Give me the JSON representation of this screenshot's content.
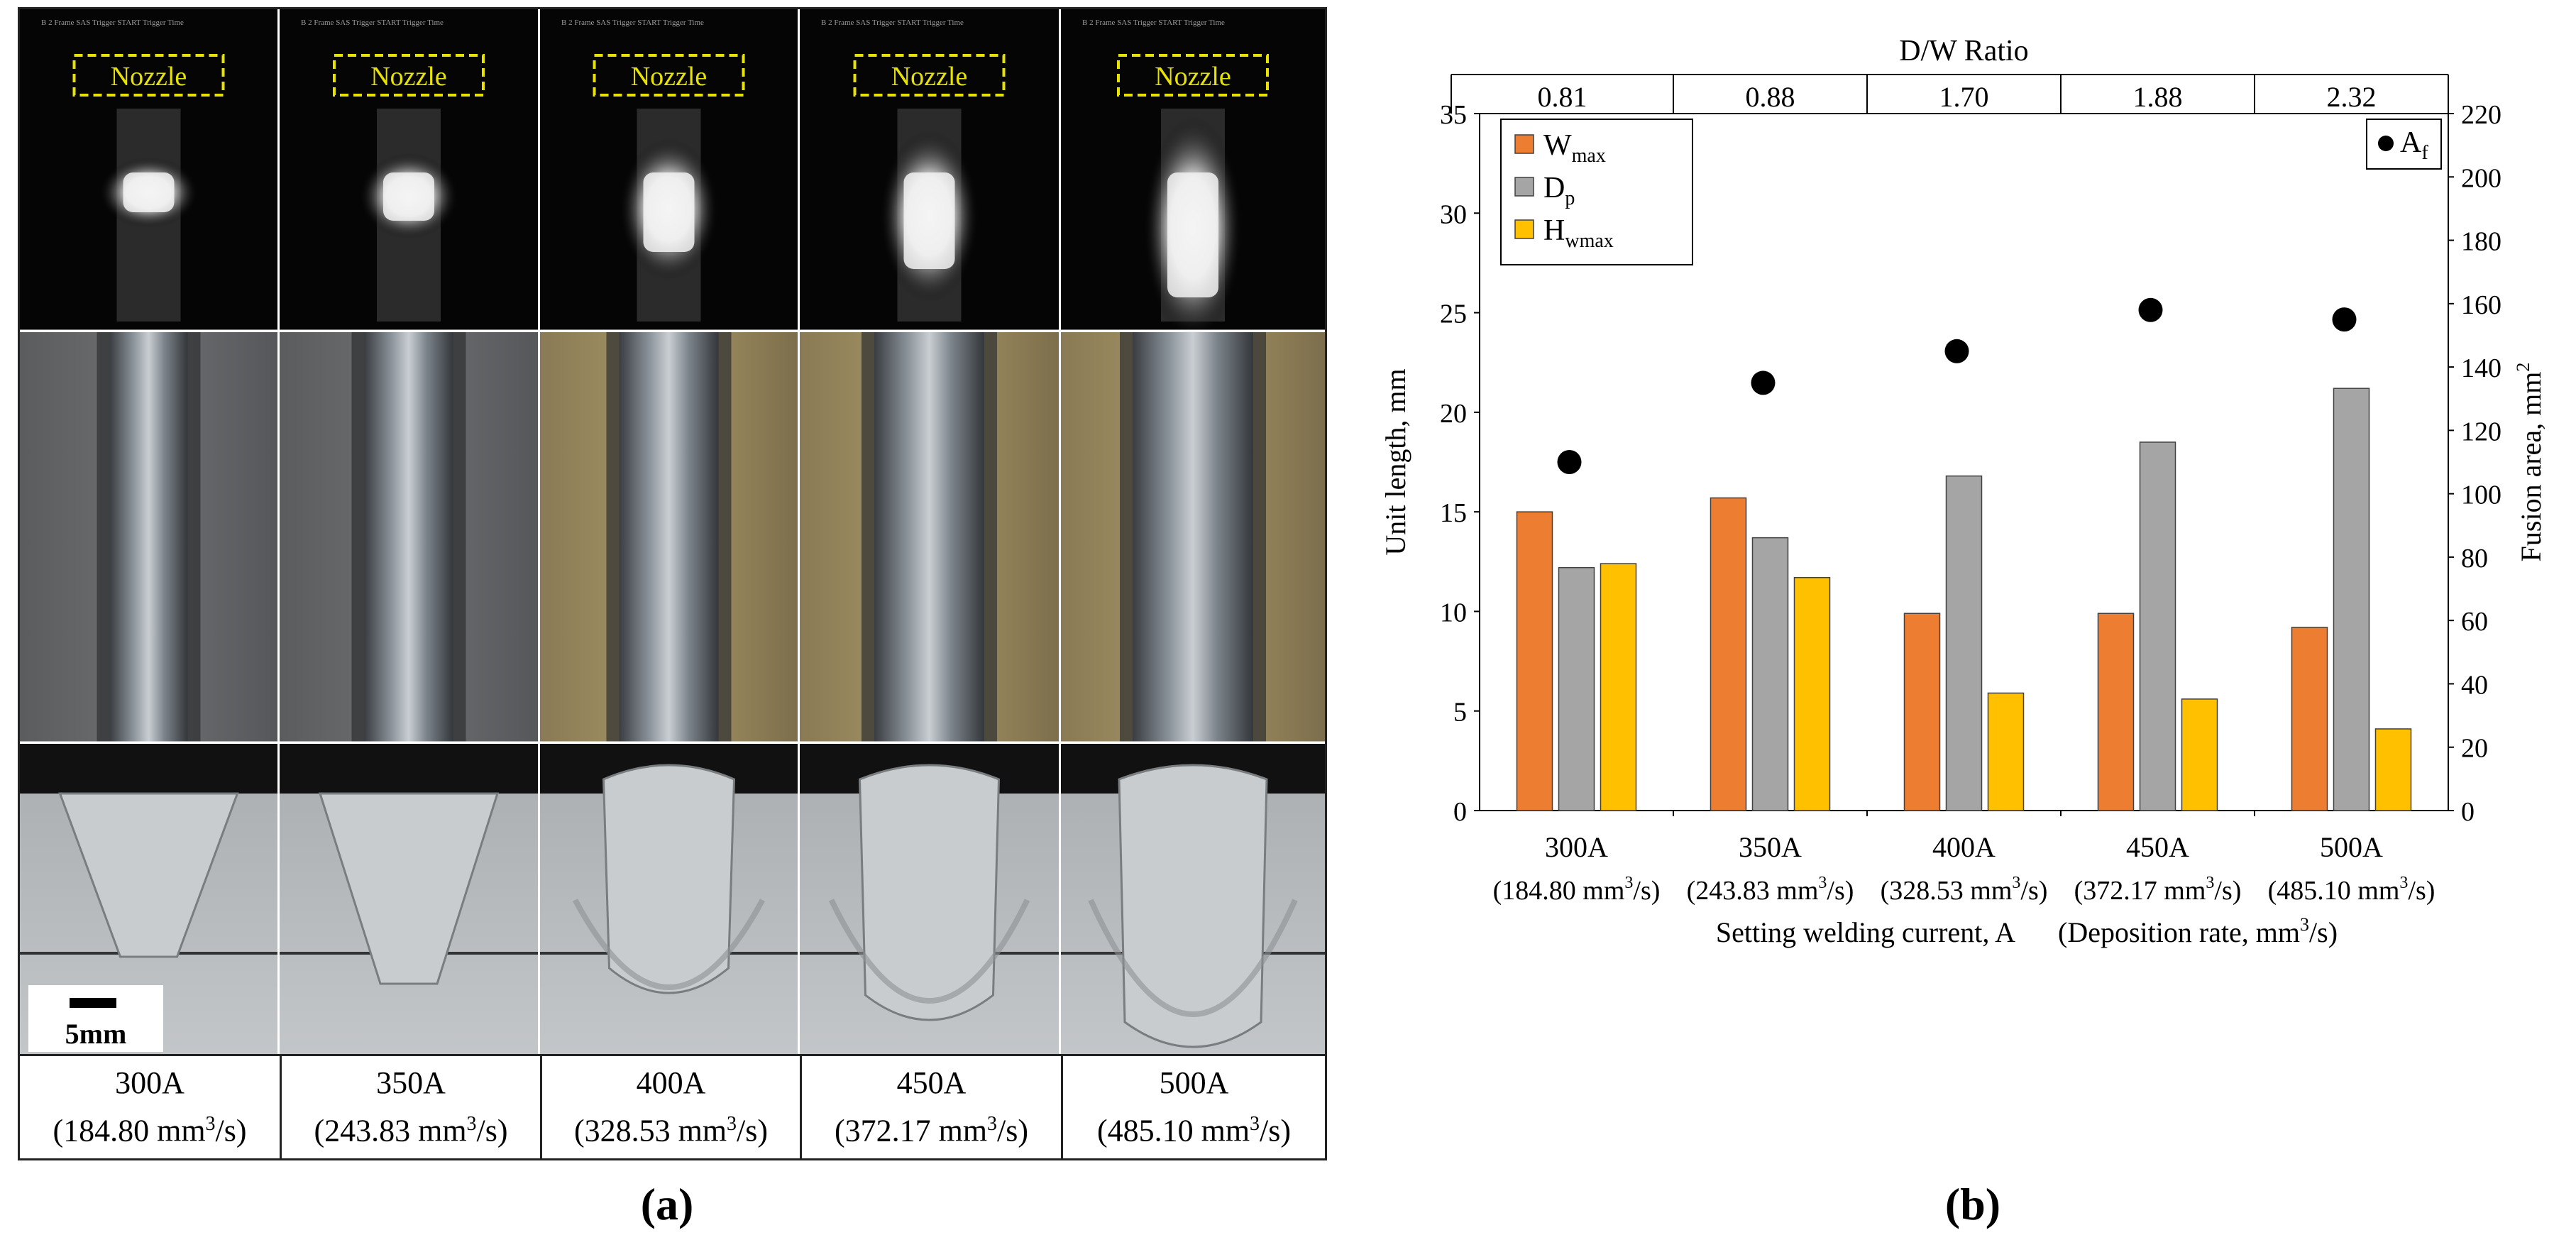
{
  "panel_a": {
    "label": "(a)",
    "nozzle_label": "Nozzle",
    "camera_text": "B 2 Frame  SAS  Trigger  START  Trigger Time",
    "scale_bar_label": "5mm",
    "columns": [
      {
        "current": "300A",
        "rate_prefix": "(184.80 mm",
        "rate_suffix": "/s)"
      },
      {
        "current": "350A",
        "rate_prefix": "(243.83 mm",
        "rate_suffix": "/s)"
      },
      {
        "current": "400A",
        "rate_prefix": "(328.53 mm",
        "rate_suffix": "/s)"
      },
      {
        "current": "450A",
        "rate_prefix": "(372.17 mm",
        "rate_suffix": "/s)"
      },
      {
        "current": "500A",
        "rate_prefix": "(485.10 mm",
        "rate_suffix": "/s)"
      }
    ],
    "superscript": "3"
  },
  "panel_b": {
    "label": "(b)"
  },
  "chart_data": {
    "type": "bar",
    "title": "D/W Ratio",
    "dw_ratios": [
      "0.81",
      "0.88",
      "1.70",
      "1.88",
      "2.32"
    ],
    "categories": [
      "300A",
      "350A",
      "400A",
      "450A",
      "500A"
    ],
    "category_sublabels": [
      "(184.80 mm",
      "(243.83 mm",
      "(328.53 mm",
      "(372.17 mm",
      "(485.10 mm"
    ],
    "sublabel_suffix": "/s)",
    "superscript": "3",
    "xlabel_left": "Setting welding current, A",
    "xlabel_right": "(Deposition rate, mm",
    "xlabel_right_suffix": "/s)",
    "ylabel": "Unit length, mm",
    "y2label": "Fusion area, mm",
    "y2label_sup": "2",
    "ylim": [
      0,
      35
    ],
    "yticks": [
      0,
      5,
      10,
      15,
      20,
      25,
      30,
      35
    ],
    "y2lim": [
      0,
      220
    ],
    "y2ticks": [
      0,
      20,
      40,
      60,
      80,
      100,
      120,
      140,
      160,
      180,
      200,
      220
    ],
    "series": [
      {
        "name": "W",
        "sub": "max",
        "color": "#ED7D31",
        "axis": "left",
        "values": [
          15.0,
          15.7,
          9.9,
          9.9,
          9.2
        ]
      },
      {
        "name": "D",
        "sub": "p",
        "color": "#A5A5A5",
        "axis": "left",
        "values": [
          12.2,
          13.7,
          16.8,
          18.5,
          21.2
        ]
      },
      {
        "name": "H",
        "sub": "wmax",
        "color": "#FFC000",
        "axis": "left",
        "values": [
          12.4,
          11.7,
          5.9,
          5.6,
          4.1
        ]
      }
    ],
    "scatter": {
      "name": "A",
      "sub": "f",
      "color": "#000000",
      "axis": "right",
      "values": [
        110,
        135,
        145,
        158,
        155
      ]
    }
  }
}
